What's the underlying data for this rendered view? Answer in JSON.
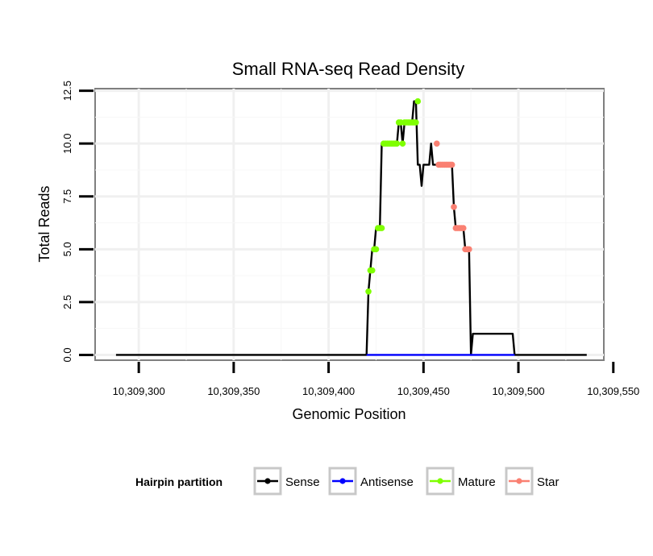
{
  "chart_data": {
    "type": "line",
    "title": "Small RNA-seq Read Density",
    "xlabel": "Genomic Position",
    "ylabel": "Total Reads",
    "xlim": [
      10309277,
      10309545
    ],
    "ylim": [
      -0.25,
      12.6
    ],
    "xticks": [
      10309300,
      10309350,
      10309400,
      10309450,
      10309500,
      10309550
    ],
    "xtick_labels": [
      "10,309,300",
      "10,309,350",
      "10,309,400",
      "10,309,450",
      "10,309,500",
      "10,309,550"
    ],
    "yticks": [
      0,
      2.5,
      5,
      7.5,
      10,
      12.5
    ],
    "ytick_labels": [
      "0.0",
      "2.5",
      "5.0",
      "7.5",
      "10.0",
      "12.5"
    ],
    "grid": true,
    "legend": {
      "title": "Hairpin partition",
      "position": "bottom",
      "entries": [
        {
          "label": "Sense",
          "color": "#000000"
        },
        {
          "label": "Antisense",
          "color": "#0000ff"
        },
        {
          "label": "Mature",
          "color": "#7fff00"
        },
        {
          "label": "Star",
          "color": "#fa8072"
        }
      ]
    },
    "series": [
      {
        "name": "Sense",
        "color": "#000000",
        "x": [
          10309288,
          10309420,
          10309421,
          10309422,
          10309423,
          10309424,
          10309425,
          10309426,
          10309427,
          10309428,
          10309429,
          10309436,
          10309437,
          10309438,
          10309439,
          10309440,
          10309441,
          10309442,
          10309443,
          10309444,
          10309445,
          10309446,
          10309447,
          10309448,
          10309449,
          10309450,
          10309451,
          10309452,
          10309453,
          10309454,
          10309455,
          10309456,
          10309457,
          10309458,
          10309459,
          10309460,
          10309465,
          10309466,
          10309467,
          10309468,
          10309469,
          10309470,
          10309471,
          10309472,
          10309473,
          10309474,
          10309475,
          10309476,
          10309497,
          10309498,
          10309536
        ],
        "y": [
          0,
          0,
          3,
          4,
          5,
          5,
          6,
          6,
          6,
          10,
          10,
          10,
          11,
          11,
          10,
          11,
          11,
          11,
          11,
          11,
          12,
          12,
          9,
          9,
          8,
          9,
          9,
          9,
          9,
          10,
          9,
          9,
          9,
          9,
          9,
          9,
          9,
          7,
          6,
          6,
          6,
          6,
          6,
          5,
          5,
          5,
          0,
          1,
          1,
          0,
          0
        ]
      },
      {
        "name": "Antisense",
        "color": "#0000ff",
        "x": [
          10309420,
          10309498
        ],
        "y": [
          0,
          0
        ]
      },
      {
        "name": "Mature",
        "color": "#7fff00",
        "x": [
          10309421,
          10309422,
          10309423,
          10309424,
          10309425,
          10309426,
          10309427,
          10309428,
          10309429,
          10309430,
          10309431,
          10309432,
          10309433,
          10309434,
          10309435,
          10309436,
          10309437,
          10309438,
          10309439,
          10309440,
          10309441,
          10309442,
          10309443,
          10309444,
          10309445,
          10309446,
          10309447
        ],
        "y": [
          3,
          4,
          4,
          5,
          5,
          6,
          6,
          6,
          10,
          10,
          10,
          10,
          10,
          10,
          10,
          10,
          11,
          11,
          10,
          11,
          11,
          11,
          11,
          11,
          11,
          11,
          12
        ]
      },
      {
        "name": "Star",
        "color": "#fa8072",
        "x": [
          10309457,
          10309458,
          10309459,
          10309460,
          10309461,
          10309462,
          10309463,
          10309464,
          10309465,
          10309466,
          10309467,
          10309468,
          10309469,
          10309470,
          10309471,
          10309472,
          10309473,
          10309474
        ],
        "y": [
          10,
          9,
          9,
          9,
          9,
          9,
          9,
          9,
          9,
          7,
          6,
          6,
          6,
          6,
          6,
          5,
          5,
          5
        ]
      }
    ]
  }
}
